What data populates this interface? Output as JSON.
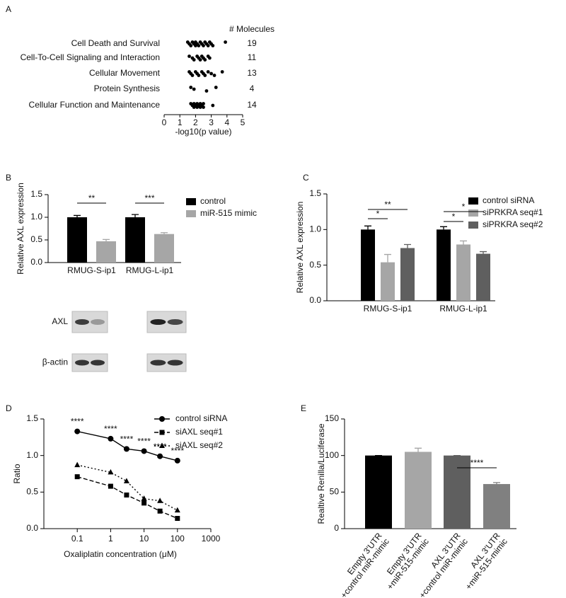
{
  "chart_data": [
    {
      "panel": "A",
      "type": "strip",
      "categories": [
        "Cell Death and Survival",
        "Cell-To-Cell Signaling and Interaction",
        "Cellular Movement",
        "Protein Synthesis",
        "Cellular Function and Maintenance"
      ],
      "values": [
        [
          1.5,
          1.6,
          1.7,
          1.8,
          1.9,
          2.0,
          2.0,
          2.1,
          2.2,
          2.3,
          2.4,
          2.5,
          2.6,
          2.7,
          2.8,
          2.9,
          3.0,
          3.1,
          3.9
        ],
        [
          1.6,
          1.8,
          1.9,
          2.1,
          2.2,
          2.3,
          2.4,
          2.5,
          2.6,
          2.8,
          2.9
        ],
        [
          1.6,
          1.7,
          1.8,
          2.0,
          2.1,
          2.2,
          2.4,
          2.5,
          2.6,
          2.8,
          3.0,
          3.2,
          3.7
        ],
        [
          1.7,
          1.9,
          2.7,
          3.3
        ],
        [
          1.7,
          1.8,
          1.9,
          1.9,
          2.0,
          2.1,
          2.1,
          2.2,
          2.3,
          2.3,
          2.4,
          2.5,
          2.5,
          3.1
        ]
      ],
      "counts_label": "# Molecules",
      "counts": [
        19,
        11,
        13,
        4,
        14
      ],
      "xlabel": "-log10(p value)",
      "xlim": [
        0,
        5
      ],
      "xticks": [
        0,
        1,
        2,
        3,
        4,
        5
      ],
      "color": "#000000"
    },
    {
      "panel": "B",
      "type": "bar",
      "categories": [
        "RMUG-S-ip1",
        "RMUG-L-ip1"
      ],
      "series": [
        {
          "name": "control",
          "color": "#000000",
          "values": [
            1.0,
            1.0
          ],
          "errors": [
            0.04,
            0.06
          ]
        },
        {
          "name": "miR-515 mimic",
          "color": "#a6a6a6",
          "values": [
            0.47,
            0.63
          ],
          "errors": [
            0.04,
            0.03
          ]
        }
      ],
      "ylabel": "Relative AXL expression",
      "ylim": [
        0,
        1.5
      ],
      "yticks": [
        {
          "value": 0,
          "label": "0.0"
        },
        0.5,
        {
          "value": 1,
          "label": "1.0"
        },
        1.5
      ],
      "annotations": [
        "**",
        "***"
      ],
      "blot_labels": [
        "AXL",
        "β-actin"
      ]
    },
    {
      "panel": "C",
      "type": "bar",
      "categories": [
        "RMUG-S-ip1",
        "RMUG-L-ip1"
      ],
      "series": [
        {
          "name": "control siRNA",
          "color": "#000000",
          "values": [
            1.0,
            1.0
          ],
          "errors": [
            0.05,
            0.04
          ]
        },
        {
          "name": "siPRKRA seq#1",
          "color": "#a6a6a6",
          "values": [
            0.54,
            0.79
          ],
          "errors": [
            0.11,
            0.05
          ]
        },
        {
          "name": "siPRKRA seq#2",
          "color": "#5f5f5f",
          "values": [
            0.74,
            0.66
          ],
          "errors": [
            0.05,
            0.03
          ]
        }
      ],
      "ylabel": "Relative AXL expression",
      "ylim": [
        0,
        1.5
      ],
      "yticks": [
        {
          "value": 0,
          "label": "0.0"
        },
        0.5,
        {
          "value": 1,
          "label": "1.0"
        },
        1.5
      ],
      "annotations": [
        "**",
        "*",
        "*",
        "*"
      ]
    },
    {
      "panel": "D",
      "type": "line",
      "x": [
        0.1,
        1,
        3,
        10,
        30,
        100
      ],
      "series": [
        {
          "name": "control siRNA",
          "color": "#000000",
          "dash": "solid",
          "marker": "circle",
          "values": [
            1.33,
            1.23,
            1.09,
            1.06,
            0.99,
            0.93
          ]
        },
        {
          "name": "siAXL seq#1",
          "color": "#000000",
          "dash": "dashed",
          "marker": "square",
          "values": [
            0.71,
            0.58,
            0.46,
            0.35,
            0.24,
            0.14
          ]
        },
        {
          "name": "siAXL seq#2",
          "color": "#000000",
          "dash": "dotted",
          "marker": "triangle",
          "values": [
            0.87,
            0.77,
            0.65,
            0.41,
            0.38,
            0.25
          ]
        }
      ],
      "xlabel": "Oxaliplatin concentration (μM)",
      "ylabel": "Ratio",
      "xlog": true,
      "xlim": [
        0.01,
        1000
      ],
      "xticks": [
        0.1,
        1,
        10,
        100,
        1000
      ],
      "ylim": [
        0,
        1.5
      ],
      "yticks": [
        {
          "value": 0,
          "label": "0.0"
        },
        0.5,
        {
          "value": 1,
          "label": "1.0"
        },
        1.5
      ],
      "annotations": [
        "****",
        "****",
        "****",
        "****",
        "****",
        "****"
      ]
    },
    {
      "panel": "E",
      "type": "bar",
      "categories": [
        [
          "Empty 3'UTR",
          "+control miR-mimic"
        ],
        [
          "Empty 3'UTR",
          "+miR-515-mimic"
        ],
        [
          "AXL 3'UTR",
          "+control miR-mimic"
        ],
        [
          "AXL 3'UTR",
          "+miR-515-mimic"
        ]
      ],
      "values": [
        100,
        105,
        100,
        61
      ],
      "errors": [
        0,
        5,
        0,
        2
      ],
      "colors": [
        "#000000",
        "#a6a6a6",
        "#5f5f5f",
        "#808080"
      ],
      "ylabel": "Realtive Renilla/Luciferase",
      "ylim": [
        0,
        150
      ],
      "yticks": [
        0,
        50,
        100,
        150
      ],
      "annotations": [
        "****"
      ]
    }
  ]
}
